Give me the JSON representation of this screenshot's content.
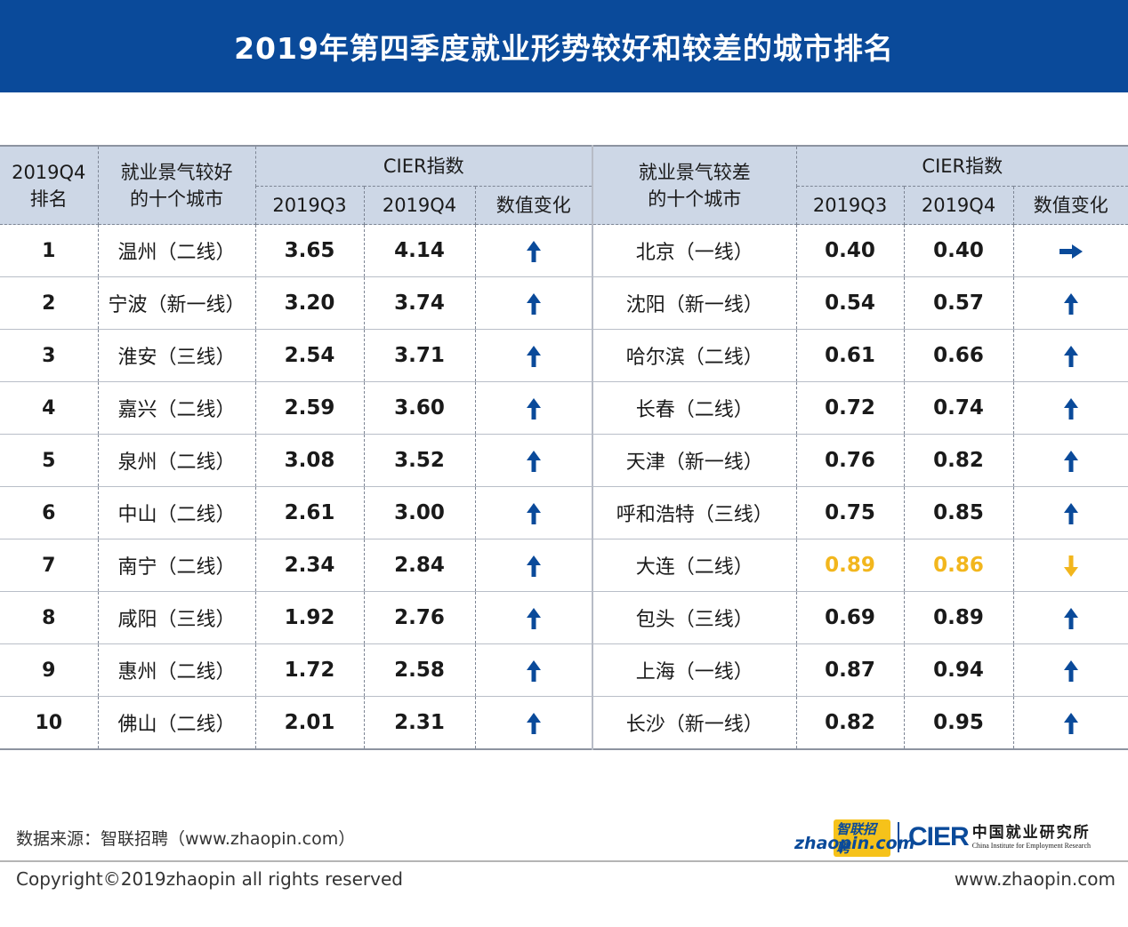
{
  "title": "2019年第四季度就业形势较好和较差的城市排名",
  "header": {
    "rank_line1": "2019Q4",
    "rank_line2": "排名",
    "good_line1": "就业景气较好",
    "good_line2": "的十个城市",
    "cier_index": "CIER指数",
    "q3": "2019Q3",
    "q4": "2019Q4",
    "change": "数值变化",
    "bad_line1": "就业景气较差",
    "bad_line2": "的十个城市"
  },
  "chart_data": {
    "type": "table",
    "columns": [
      "2019Q4排名",
      "就业景气较好的十个城市",
      "2019Q3",
      "2019Q4",
      "数值变化",
      "就业景气较差的十个城市",
      "2019Q3",
      "2019Q4",
      "数值变化"
    ],
    "rows": [
      {
        "rank": "1",
        "good_city": "温州（二线）",
        "good_q3": "3.65",
        "good_q4": "4.14",
        "good_change": "up",
        "bad_city": "北京（一线）",
        "bad_q3": "0.40",
        "bad_q4": "0.40",
        "bad_change": "flat"
      },
      {
        "rank": "2",
        "good_city": "宁波（新一线）",
        "good_q3": "3.20",
        "good_q4": "3.74",
        "good_change": "up",
        "bad_city": "沈阳（新一线）",
        "bad_q3": "0.54",
        "bad_q4": "0.57",
        "bad_change": "up"
      },
      {
        "rank": "3",
        "good_city": "淮安（三线）",
        "good_q3": "2.54",
        "good_q4": "3.71",
        "good_change": "up",
        "bad_city": "哈尔滨（二线）",
        "bad_q3": "0.61",
        "bad_q4": "0.66",
        "bad_change": "up"
      },
      {
        "rank": "4",
        "good_city": "嘉兴（二线）",
        "good_q3": "2.59",
        "good_q4": "3.60",
        "good_change": "up",
        "bad_city": "长春（二线）",
        "bad_q3": "0.72",
        "bad_q4": "0.74",
        "bad_change": "up"
      },
      {
        "rank": "5",
        "good_city": "泉州（二线）",
        "good_q3": "3.08",
        "good_q4": "3.52",
        "good_change": "up",
        "bad_city": "天津（新一线）",
        "bad_q3": "0.76",
        "bad_q4": "0.82",
        "bad_change": "up"
      },
      {
        "rank": "6",
        "good_city": "中山（二线）",
        "good_q3": "2.61",
        "good_q4": "3.00",
        "good_change": "up",
        "bad_city": "呼和浩特（三线）",
        "bad_q3": "0.75",
        "bad_q4": "0.85",
        "bad_change": "up"
      },
      {
        "rank": "7",
        "good_city": "南宁（二线）",
        "good_q3": "2.34",
        "good_q4": "2.84",
        "good_change": "up",
        "bad_city": "大连（二线）",
        "bad_q3": "0.89",
        "bad_q4": "0.86",
        "bad_change": "down"
      },
      {
        "rank": "8",
        "good_city": "咸阳（三线）",
        "good_q3": "1.92",
        "good_q4": "2.76",
        "good_change": "up",
        "bad_city": "包头（三线）",
        "bad_q3": "0.69",
        "bad_q4": "0.89",
        "bad_change": "up"
      },
      {
        "rank": "9",
        "good_city": "惠州（二线）",
        "good_q3": "1.72",
        "good_q4": "2.58",
        "good_change": "up",
        "bad_city": "上海（一线）",
        "bad_q3": "0.87",
        "bad_q4": "0.94",
        "bad_change": "up"
      },
      {
        "rank": "10",
        "good_city": "佛山（二线）",
        "good_q3": "2.01",
        "good_q4": "2.31",
        "good_change": "up",
        "bad_city": "长沙（新一线）",
        "bad_q3": "0.82",
        "bad_q4": "0.95",
        "bad_change": "up"
      }
    ]
  },
  "colors": {
    "title_bg": "#0a4a9a",
    "header_bg": "#cdd7e6",
    "arrow_blue": "#0a4a9a",
    "arrow_down_yellow": "#f2b61d",
    "highlight_text": "#f2b61d"
  },
  "footer": {
    "source": "数据来源：智联招聘（www.zhaopin.com）",
    "copyright": "Copyright©2019zhaopin all rights reserved",
    "site": "www.zhaopin.com"
  },
  "logos": {
    "zhaopin_top": "智联招聘",
    "zhaopin_bottom": "zhaopin.com",
    "cier": "CIER",
    "cier_cn": "中国就业研究所",
    "cier_en": "China Institute for Employment Research"
  }
}
